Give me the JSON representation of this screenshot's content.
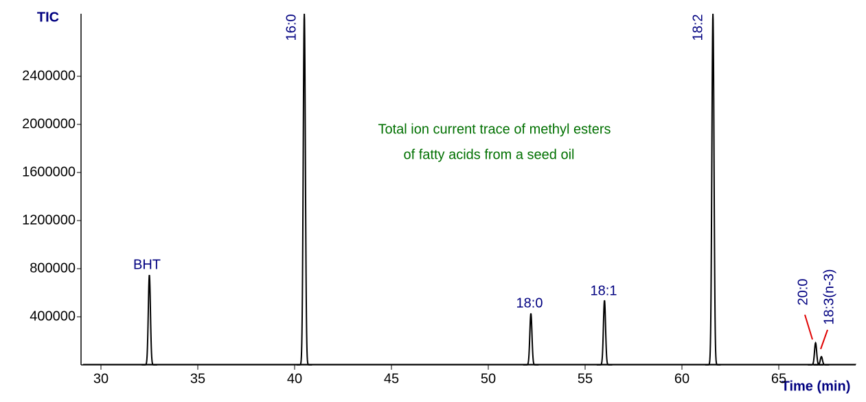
{
  "chart_data": {
    "type": "chromatogram",
    "title_lines": [
      "Total ion current trace of methyl esters",
      "of fatty acids from a seed oil"
    ],
    "x_label": "Time (min)",
    "y_label": "TIC",
    "xlim": [
      29,
      69
    ],
    "xticks": [
      30,
      35,
      40,
      45,
      50,
      55,
      60,
      65
    ],
    "ylim": [
      0,
      2920000
    ],
    "yticks": [
      400000,
      800000,
      1200000,
      1600000,
      2000000,
      2400000
    ],
    "color": "#000000",
    "label_color": "#000080",
    "title_color": "#007000",
    "leader_color": "#e00000",
    "peaks": [
      {
        "label": "BHT",
        "x": 32.5,
        "height": 748000
      },
      {
        "label": "16:0",
        "x": 40.5,
        "height": 2920000
      },
      {
        "label": "18:0",
        "x": 52.2,
        "height": 428000
      },
      {
        "label": "18:1",
        "x": 56.0,
        "height": 537000
      },
      {
        "label": "18:2",
        "x": 61.6,
        "height": 2920000
      },
      {
        "label": "20:0",
        "x": 66.9,
        "height": 183000
      },
      {
        "label": "18:3(n-3)",
        "x": 67.2,
        "height": 69000
      }
    ]
  }
}
